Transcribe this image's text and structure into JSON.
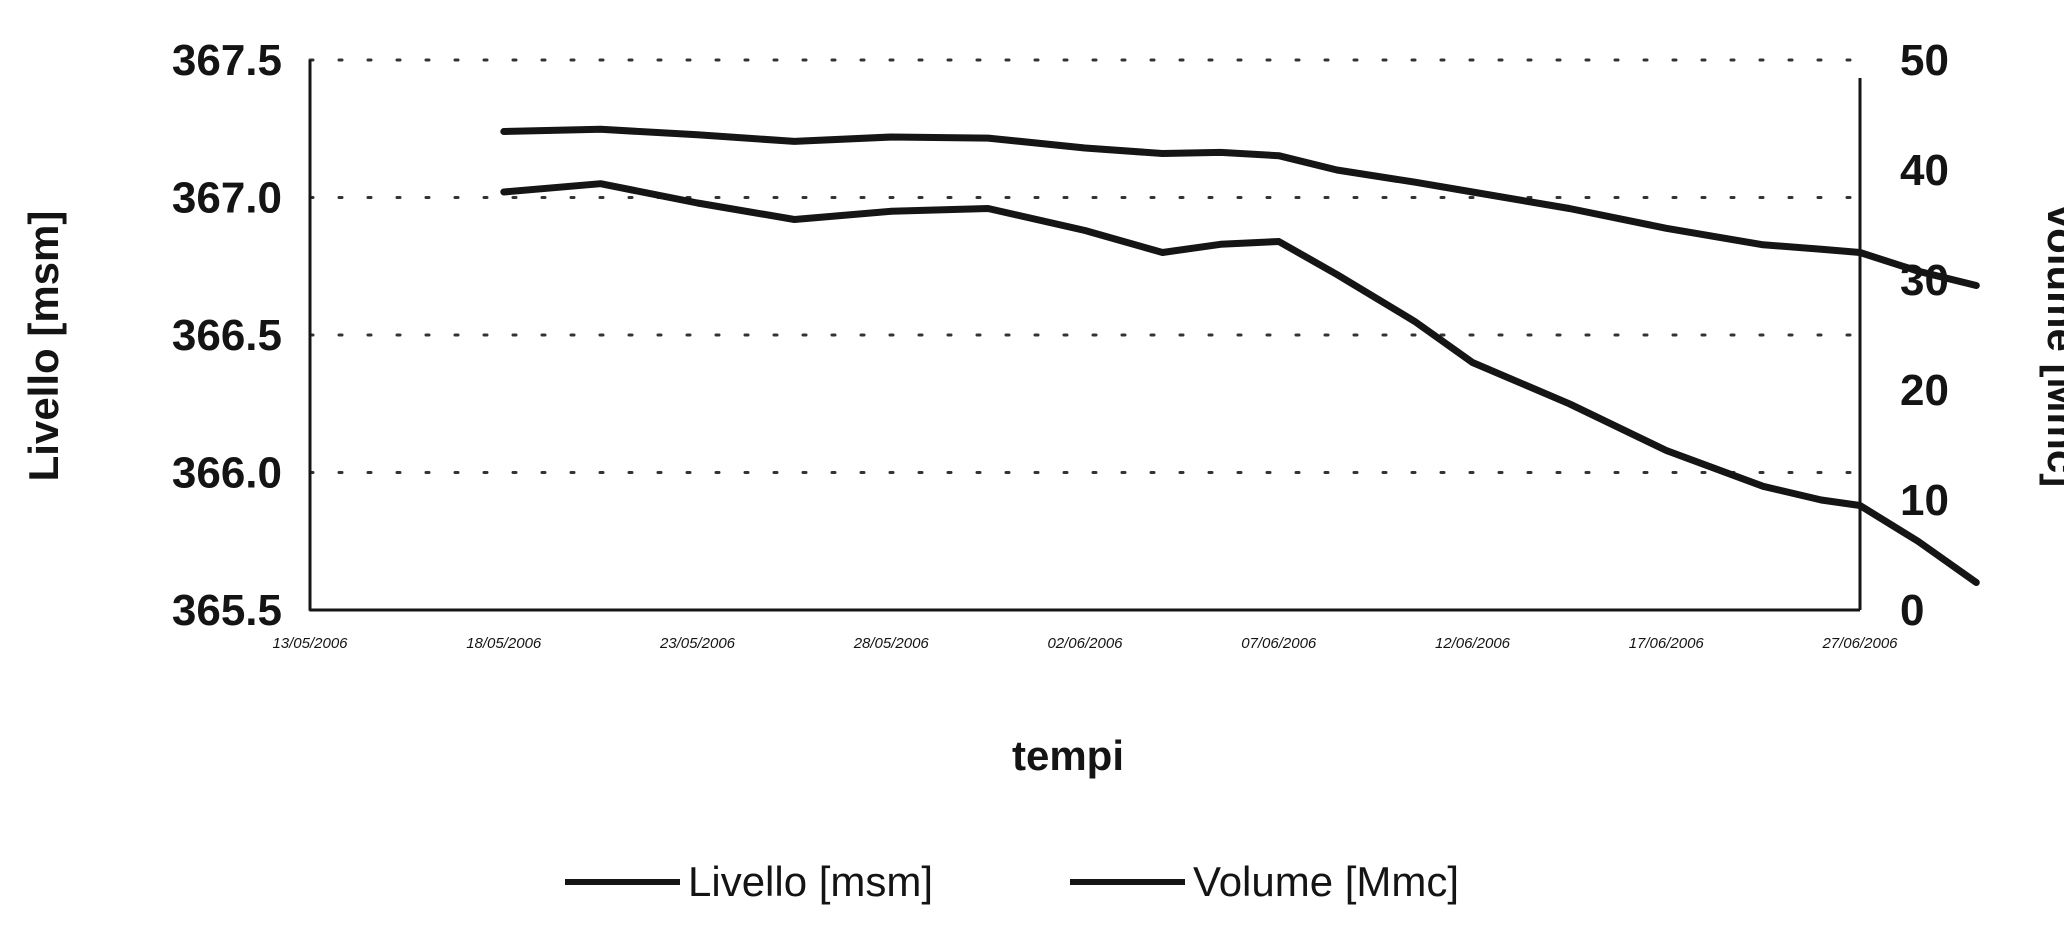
{
  "chart_data": {
    "type": "line",
    "xlabel": "tempi",
    "ylabel_left": "Livello [msm]",
    "ylabel_right": "volume [Mmc]",
    "ylim_left": [
      365.5,
      367.5
    ],
    "ylim_right": [
      0,
      50
    ],
    "left_ticks": [
      "365.5",
      "366.0",
      "366.5",
      "367.0",
      "367.5"
    ],
    "right_ticks": [
      "0",
      "10",
      "20",
      "30",
      "40",
      "50"
    ],
    "x_tick_labels": [
      "13/05/2006",
      "18/05/2006",
      "23/05/2006",
      "28/05/2006",
      "02/06/2006",
      "07/06/2006",
      "12/06/2006",
      "17/06/2006",
      "27/06/2006"
    ],
    "grid": "dotted",
    "legend_position": "bottom",
    "series": [
      {
        "name": "Livello [msm]",
        "axis": "left",
        "color": "#151515",
        "x": [
          1.0,
          1.5,
          2.0,
          2.5,
          3.0,
          3.5,
          4.0,
          4.4,
          4.7,
          5.0,
          5.3,
          5.7,
          6.0,
          6.5,
          7.0,
          7.5,
          7.8,
          8.0,
          8.3,
          8.6
        ],
        "y": [
          367.02,
          367.05,
          366.98,
          366.92,
          366.95,
          366.96,
          366.88,
          366.8,
          366.83,
          366.84,
          366.72,
          366.55,
          366.4,
          366.25,
          366.08,
          365.95,
          365.9,
          365.88,
          365.75,
          365.6
        ]
      },
      {
        "name": "Volume [Mmc]",
        "axis": "right",
        "color": "#151515",
        "x": [
          1.0,
          1.5,
          2.0,
          2.5,
          3.0,
          3.5,
          4.0,
          4.4,
          4.7,
          5.0,
          5.3,
          5.7,
          6.0,
          6.5,
          7.0,
          7.5,
          7.8,
          8.0,
          8.3,
          8.6
        ],
        "y": [
          43.5,
          43.7,
          43.2,
          42.6,
          43.0,
          42.9,
          42.0,
          41.5,
          41.6,
          41.3,
          40.0,
          38.9,
          38.0,
          36.5,
          34.7,
          33.2,
          32.8,
          32.5,
          30.8,
          29.5
        ]
      }
    ]
  }
}
